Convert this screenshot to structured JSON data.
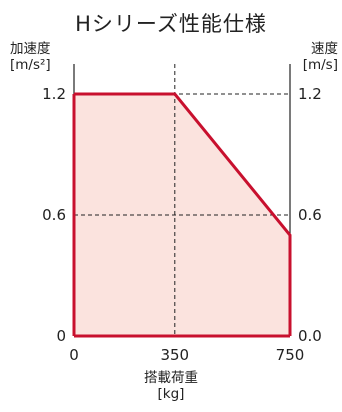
{
  "chart_data": {
    "type": "area",
    "title": "Hシリーズ性能仕様",
    "ylabel_left": "加速度 [m/s²]",
    "ylabel_left_lines": [
      "加速度",
      "[m/s²]"
    ],
    "ylabel_right": "速度 [m/s]",
    "ylabel_right_lines": [
      "速度",
      "[m/s]"
    ],
    "xlabel": "搭載荷重 [kg]",
    "xlabel_lines": [
      "搭載荷重",
      "[kg]"
    ],
    "xlim": [
      0,
      750
    ],
    "ylim": [
      0,
      1.2
    ],
    "x_ticks": [
      "0",
      "350",
      "750"
    ],
    "x_tick_values": [
      0,
      350,
      750
    ],
    "y_ticks_left": [
      "0",
      "0.6",
      "1.2"
    ],
    "y_ticks_right": [
      "0.0",
      "0.6",
      "1.2"
    ],
    "y_tick_values": [
      0,
      0.6,
      1.2
    ],
    "grid": "dashed",
    "series": [
      {
        "x": [
          0,
          350,
          750,
          750
        ],
        "y": [
          1.2,
          1.2,
          0.5,
          0
        ],
        "color": "#c8102e",
        "fill": "#fbe3de"
      }
    ]
  }
}
